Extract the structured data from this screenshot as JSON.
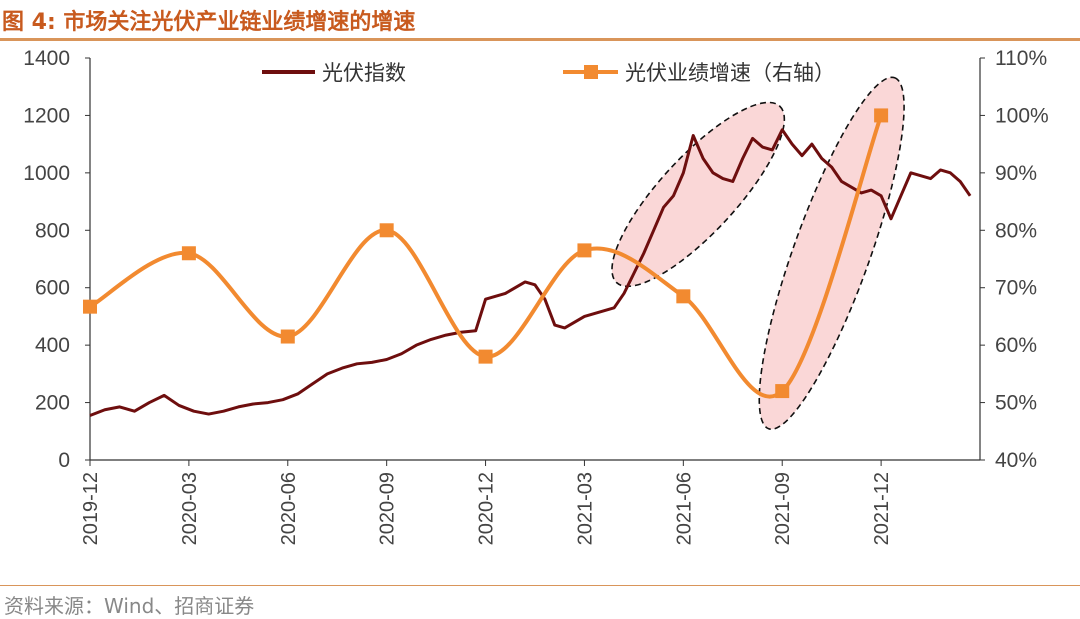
{
  "figure": {
    "title": "图 4:  市场关注光伏产业链业绩增速的增速",
    "source": "资料来源：Wind、招商证券"
  },
  "chart_data": {
    "type": "line",
    "categories": [
      "2019-12",
      "2020-03",
      "2020-06",
      "2020-09",
      "2020-12",
      "2021-03",
      "2021-06",
      "2021-09",
      "2021-12"
    ],
    "left_axis": {
      "ylim": [
        0,
        1400
      ],
      "ticks": [
        "0",
        "200",
        "400",
        "600",
        "800",
        "1000",
        "1200",
        "1400"
      ]
    },
    "right_axis": {
      "ylim": [
        40,
        110
      ],
      "ticks": [
        "40%",
        "50%",
        "60%",
        "70%",
        "80%",
        "90%",
        "100%",
        "110%"
      ]
    },
    "legend": {
      "placement": "top-center"
    },
    "colors": {
      "index": "#6E0E0E",
      "growth": "#F28A30",
      "highlight_fill": "#F9D3D3",
      "highlight_stroke": "#111111"
    },
    "series": [
      {
        "name": "光伏指数",
        "axis": "left",
        "style": "line",
        "x": [
          0,
          0.15,
          0.3,
          0.45,
          0.6,
          0.75,
          0.9,
          1.05,
          1.2,
          1.35,
          1.5,
          1.65,
          1.8,
          1.95,
          2.1,
          2.25,
          2.4,
          2.55,
          2.7,
          2.85,
          3.0,
          3.15,
          3.3,
          3.45,
          3.6,
          3.75,
          3.9,
          4.0,
          4.1,
          4.2,
          4.3,
          4.4,
          4.5,
          4.6,
          4.7,
          4.8,
          4.9,
          5.0,
          5.1,
          5.2,
          5.3,
          5.4,
          5.5,
          5.6,
          5.7,
          5.8,
          5.9,
          6.0,
          6.1,
          6.2,
          6.3,
          6.4,
          6.5,
          6.6,
          6.7,
          6.8,
          6.9,
          7.0,
          7.1,
          7.2,
          7.3,
          7.4,
          7.5,
          7.6,
          7.7,
          7.8,
          7.9,
          8.0,
          8.1,
          8.2,
          8.3,
          8.4,
          8.5,
          8.6,
          8.7,
          8.8,
          8.9
        ],
        "values": [
          155,
          175,
          185,
          170,
          200,
          225,
          190,
          170,
          160,
          170,
          185,
          195,
          200,
          210,
          230,
          265,
          300,
          320,
          335,
          340,
          350,
          370,
          400,
          420,
          435,
          445,
          450,
          560,
          570,
          580,
          600,
          620,
          610,
          560,
          470,
          460,
          480,
          500,
          510,
          520,
          530,
          580,
          650,
          720,
          800,
          880,
          920,
          1000,
          1130,
          1050,
          1000,
          980,
          970,
          1050,
          1120,
          1090,
          1080,
          1150,
          1100,
          1060,
          1100,
          1050,
          1020,
          970,
          950,
          930,
          940,
          920,
          840,
          920,
          1000,
          990,
          980,
          1010,
          1000,
          970,
          920
        ]
      },
      {
        "name": "光伏业绩增速（右轴）",
        "axis": "right",
        "style": "line-marker",
        "x": [
          0,
          1,
          2,
          3,
          4,
          5,
          6,
          7,
          8
        ],
        "values": [
          66.7,
          76,
          61.5,
          80,
          58,
          76.5,
          68.5,
          52,
          100
        ]
      }
    ],
    "annotations": [
      {
        "type": "ellipse",
        "covers": "光伏指数",
        "from": "2021-05",
        "to": "2021-08"
      },
      {
        "type": "ellipse",
        "covers": "光伏业绩增速（右轴）",
        "from": "2021-09",
        "to": "2021-12"
      }
    ]
  }
}
